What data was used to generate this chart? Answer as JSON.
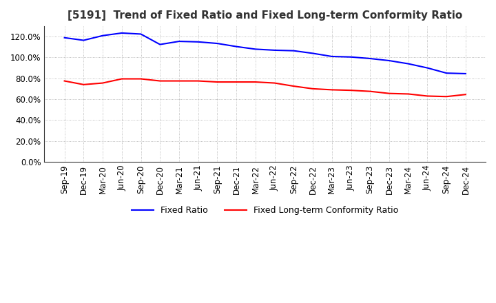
{
  "title": "[5191]  Trend of Fixed Ratio and Fixed Long-term Conformity Ratio",
  "x_labels": [
    "Sep-19",
    "Dec-19",
    "Mar-20",
    "Jun-20",
    "Sep-20",
    "Dec-20",
    "Mar-21",
    "Jun-21",
    "Sep-21",
    "Dec-21",
    "Mar-22",
    "Jun-22",
    "Sep-22",
    "Dec-22",
    "Mar-23",
    "Jun-23",
    "Sep-23",
    "Dec-23",
    "Mar-24",
    "Jun-24",
    "Sep-24",
    "Dec-24"
  ],
  "fixed_ratio": [
    119.0,
    116.5,
    121.0,
    123.5,
    122.5,
    112.5,
    115.5,
    115.0,
    113.5,
    110.5,
    108.0,
    107.0,
    106.5,
    104.0,
    101.0,
    100.5,
    99.0,
    97.0,
    94.0,
    90.0,
    85.0,
    84.5
  ],
  "fixed_lt_ratio": [
    77.5,
    74.0,
    75.5,
    79.5,
    79.5,
    77.5,
    77.5,
    77.5,
    76.5,
    76.5,
    76.5,
    75.5,
    72.5,
    70.0,
    69.0,
    68.5,
    67.5,
    65.5,
    65.0,
    63.0,
    62.5,
    64.5
  ],
  "fixed_ratio_color": "#0000FF",
  "fixed_lt_ratio_color": "#FF0000",
  "ylim": [
    0,
    130
  ],
  "yticks": [
    0,
    20,
    40,
    60,
    80,
    100,
    120
  ],
  "background_color": "#FFFFFF",
  "grid_color": "#AAAAAA",
  "legend_labels": [
    "Fixed Ratio",
    "Fixed Long-term Conformity Ratio"
  ],
  "title_fontsize": 11,
  "tick_fontsize": 8.5,
  "legend_fontsize": 9
}
